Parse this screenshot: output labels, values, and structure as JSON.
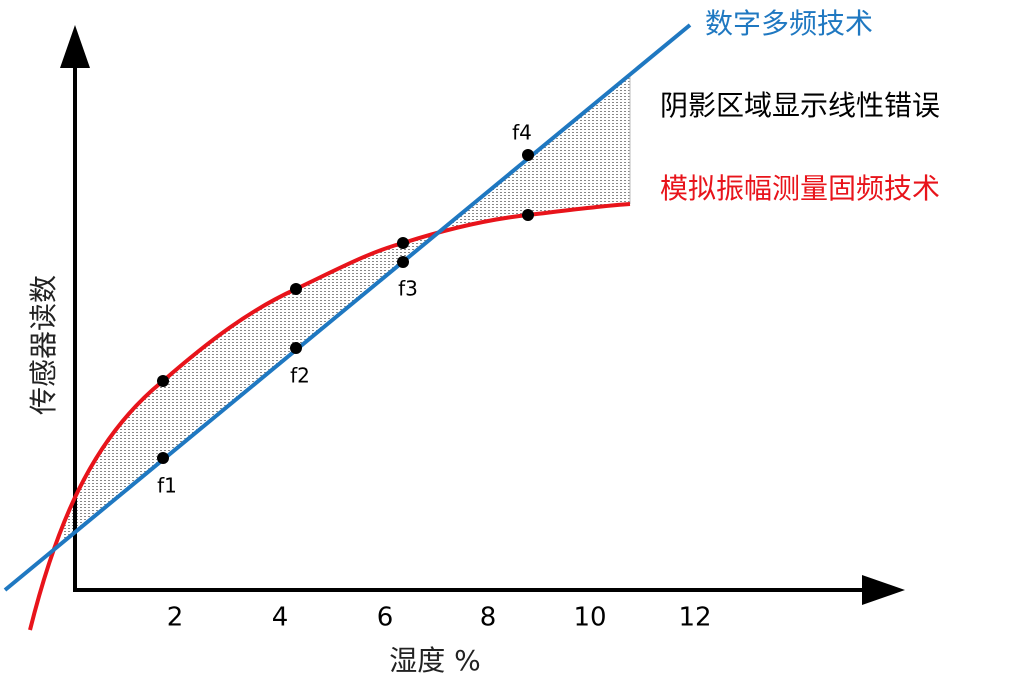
{
  "title_lines": {
    "digital": "数字多频技术",
    "shade": "阴影区域显示线性错误",
    "analog": "模拟振幅测量固频技术"
  },
  "y_axis": {
    "label": "传感器读数"
  },
  "x_axis": {
    "label": "湿度 %",
    "ticks": [
      2,
      4,
      6,
      8,
      10,
      12
    ]
  },
  "points": [
    "f1",
    "f2",
    "f3",
    "f4"
  ]
}
